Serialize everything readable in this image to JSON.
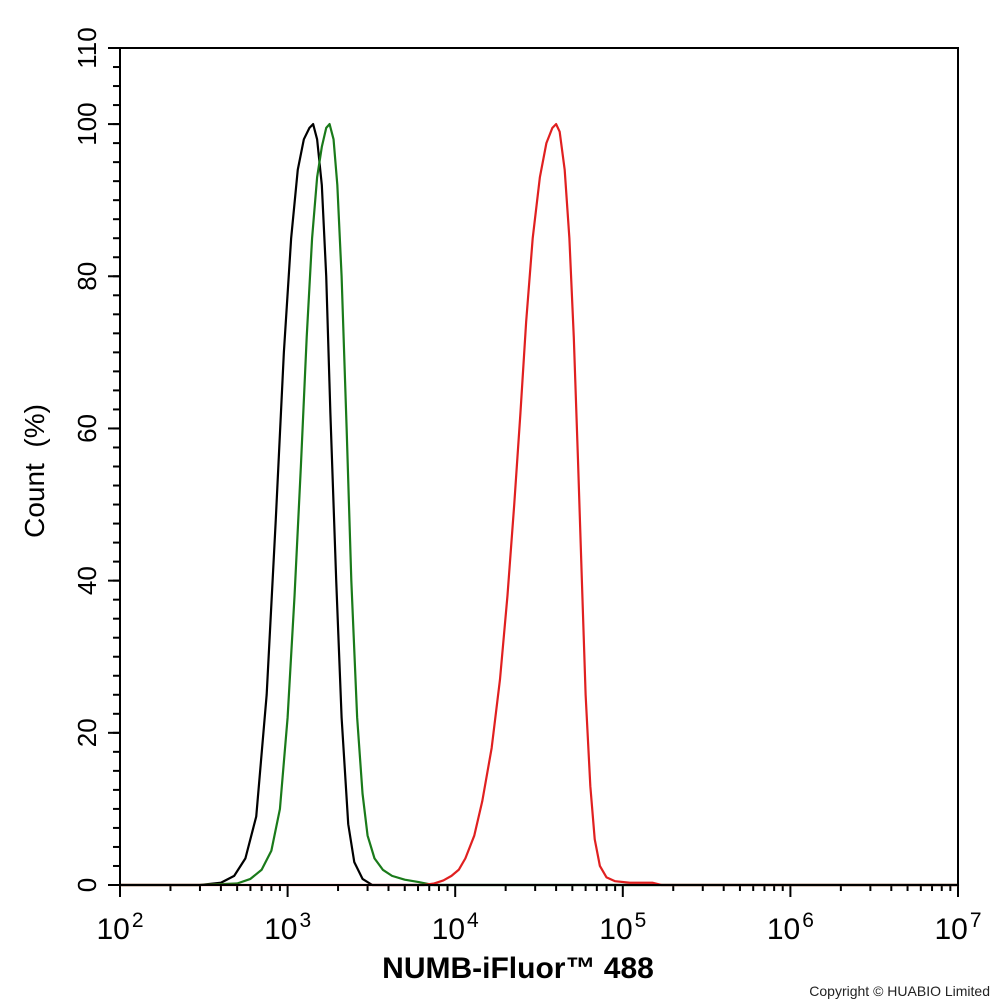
{
  "chart_data": {
    "type": "line",
    "xlabel": "NUMB-iFluor™ 488",
    "ylabel": "Count  (%)",
    "x_scale": "log10",
    "xlim": [
      100,
      10000000
    ],
    "ylim": [
      0,
      110
    ],
    "x_ticks": [
      {
        "base": "10",
        "exp": "2",
        "value": 100
      },
      {
        "base": "10",
        "exp": "3",
        "value": 1000
      },
      {
        "base": "10",
        "exp": "4",
        "value": 10000
      },
      {
        "base": "10",
        "exp": "5",
        "value": 100000
      },
      {
        "base": "10",
        "exp": "6",
        "value": 1000000
      },
      {
        "base": "10",
        "exp": "7",
        "value": 10000000
      }
    ],
    "y_ticks": [
      "0",
      "20",
      "40",
      "60",
      "80",
      "100",
      "110"
    ],
    "grid": false,
    "legend": "none",
    "series": [
      {
        "color": "#000000",
        "points": [
          [
            100,
            0
          ],
          [
            200,
            0
          ],
          [
            300,
            0
          ],
          [
            400,
            0.3
          ],
          [
            480,
            1.2
          ],
          [
            560,
            3.5
          ],
          [
            650,
            9
          ],
          [
            750,
            25
          ],
          [
            850,
            48
          ],
          [
            950,
            70
          ],
          [
            1050,
            85
          ],
          [
            1150,
            94
          ],
          [
            1250,
            98
          ],
          [
            1350,
            99.5
          ],
          [
            1420,
            100
          ],
          [
            1500,
            98
          ],
          [
            1600,
            92
          ],
          [
            1700,
            80
          ],
          [
            1800,
            62
          ],
          [
            1950,
            40
          ],
          [
            2100,
            22
          ],
          [
            2300,
            8
          ],
          [
            2500,
            3
          ],
          [
            2800,
            0.8
          ],
          [
            3200,
            0
          ],
          [
            10000000,
            0
          ]
        ]
      },
      {
        "color": "#1a7a1a",
        "points": [
          [
            100,
            0
          ],
          [
            300,
            0
          ],
          [
            500,
            0.2
          ],
          [
            600,
            0.8
          ],
          [
            700,
            2
          ],
          [
            800,
            4.5
          ],
          [
            900,
            10
          ],
          [
            1000,
            22
          ],
          [
            1100,
            38
          ],
          [
            1200,
            55
          ],
          [
            1300,
            72
          ],
          [
            1400,
            85
          ],
          [
            1500,
            93
          ],
          [
            1600,
            97
          ],
          [
            1700,
            99.5
          ],
          [
            1780,
            100
          ],
          [
            1880,
            98
          ],
          [
            1980,
            92
          ],
          [
            2100,
            80
          ],
          [
            2250,
            60
          ],
          [
            2400,
            40
          ],
          [
            2600,
            22
          ],
          [
            2800,
            12
          ],
          [
            3000,
            6.5
          ],
          [
            3300,
            3.5
          ],
          [
            3700,
            2
          ],
          [
            4200,
            1.2
          ],
          [
            5000,
            0.7
          ],
          [
            6000,
            0.4
          ],
          [
            7000,
            0.1
          ],
          [
            7500,
            0
          ],
          [
            10000000,
            0
          ]
        ]
      },
      {
        "color": "#e02020",
        "points": [
          [
            100,
            0
          ],
          [
            6500,
            0
          ],
          [
            7500,
            0.2
          ],
          [
            8500,
            0.6
          ],
          [
            9500,
            1.2
          ],
          [
            10500,
            2
          ],
          [
            11500,
            3.5
          ],
          [
            13000,
            6.5
          ],
          [
            14500,
            11
          ],
          [
            16500,
            18
          ],
          [
            18500,
            27
          ],
          [
            20500,
            38
          ],
          [
            22500,
            50
          ],
          [
            24500,
            62
          ],
          [
            26500,
            74
          ],
          [
            29000,
            85
          ],
          [
            32000,
            93
          ],
          [
            35000,
            97.5
          ],
          [
            38000,
            99.5
          ],
          [
            40000,
            100
          ],
          [
            42000,
            99
          ],
          [
            45000,
            94
          ],
          [
            48000,
            85
          ],
          [
            51000,
            72
          ],
          [
            54000,
            56
          ],
          [
            57000,
            40
          ],
          [
            60000,
            25
          ],
          [
            64000,
            13
          ],
          [
            68000,
            6
          ],
          [
            73000,
            2.5
          ],
          [
            80000,
            1
          ],
          [
            90000,
            0.5
          ],
          [
            110000,
            0.3
          ],
          [
            150000,
            0.3
          ],
          [
            170000,
            0
          ],
          [
            10000000,
            0
          ]
        ]
      }
    ]
  },
  "copyright": "Copyright © HUABIO Limited"
}
